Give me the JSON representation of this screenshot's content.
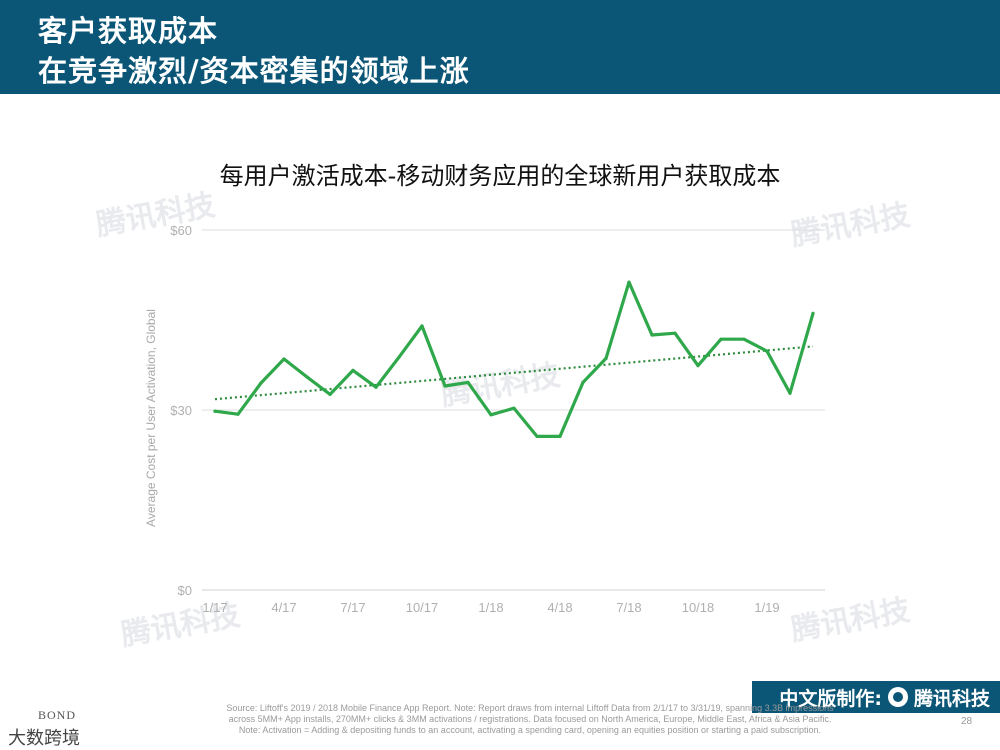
{
  "header": {
    "line1": "客户获取成本",
    "line2": "在竞争激烈/资本密集的领域上涨"
  },
  "chart_data": {
    "type": "line",
    "title": "每用户激活成本-移动财务应用的全球新用户获取成本",
    "ylabel": "Average Cost per User Activation, Global",
    "xlabel": "",
    "ylim": [
      0,
      60
    ],
    "y_ticks": [
      0,
      30,
      60
    ],
    "y_tick_labels": [
      "$0",
      "$30",
      "$60"
    ],
    "x": [
      "1/17",
      "2/17",
      "3/17",
      "4/17",
      "5/17",
      "6/17",
      "7/17",
      "8/17",
      "9/17",
      "10/17",
      "11/17",
      "12/17",
      "1/18",
      "2/18",
      "3/18",
      "4/18",
      "5/18",
      "6/18",
      "7/18",
      "8/18",
      "9/18",
      "10/18",
      "11/18",
      "12/18",
      "1/19",
      "2/19",
      "3/19"
    ],
    "x_tick_labels": [
      "1/17",
      "4/17",
      "7/17",
      "10/17",
      "1/18",
      "4/18",
      "7/18",
      "10/18",
      "1/19"
    ],
    "series": [
      {
        "name": "",
        "color": "#2ea84a",
        "values": [
          29.8,
          29.3,
          34.5,
          38.5,
          35.5,
          32.6,
          36.6,
          33.8,
          38.8,
          44.0,
          34.0,
          34.6,
          29.2,
          30.3,
          25.6,
          25.6,
          34.6,
          38.6,
          51.3,
          42.5,
          42.8,
          37.4,
          41.8,
          41.8,
          39.8,
          32.8,
          46.1
        ]
      }
    ],
    "trendline": {
      "style": "dotted",
      "color": "#2e8b3e",
      "start": 31.8,
      "end": 40.6
    },
    "grid": true,
    "legend": "none"
  },
  "watermarks": [
    "腾讯科技",
    "腾讯科技",
    "腾讯科技",
    "腾讯科技",
    "腾讯科技"
  ],
  "footer": {
    "source_line1": "Source: Liftoff's 2019 / 2018 Mobile Finance App Report.  Note: Report draws from internal Liftoff Data from 2/1/17 to 3/31/19, spanning 3.3B impressions",
    "source_line2": "across 5MM+ App installs, 270MM+ clicks & 3MM activations / registrations.  Data focused on North America, Europe, Middle East, Africa & Asia Pacific.",
    "source_line3": "Note: Activation = Adding & depositing funds to an account, activating a spending card, opening an equities position or starting a paid subscription.",
    "page_number": "28",
    "brand_label": "中文版制作:",
    "brand_name": "腾讯科技",
    "bond_logo": "BOND",
    "wechat_mark": "大数跨境"
  }
}
